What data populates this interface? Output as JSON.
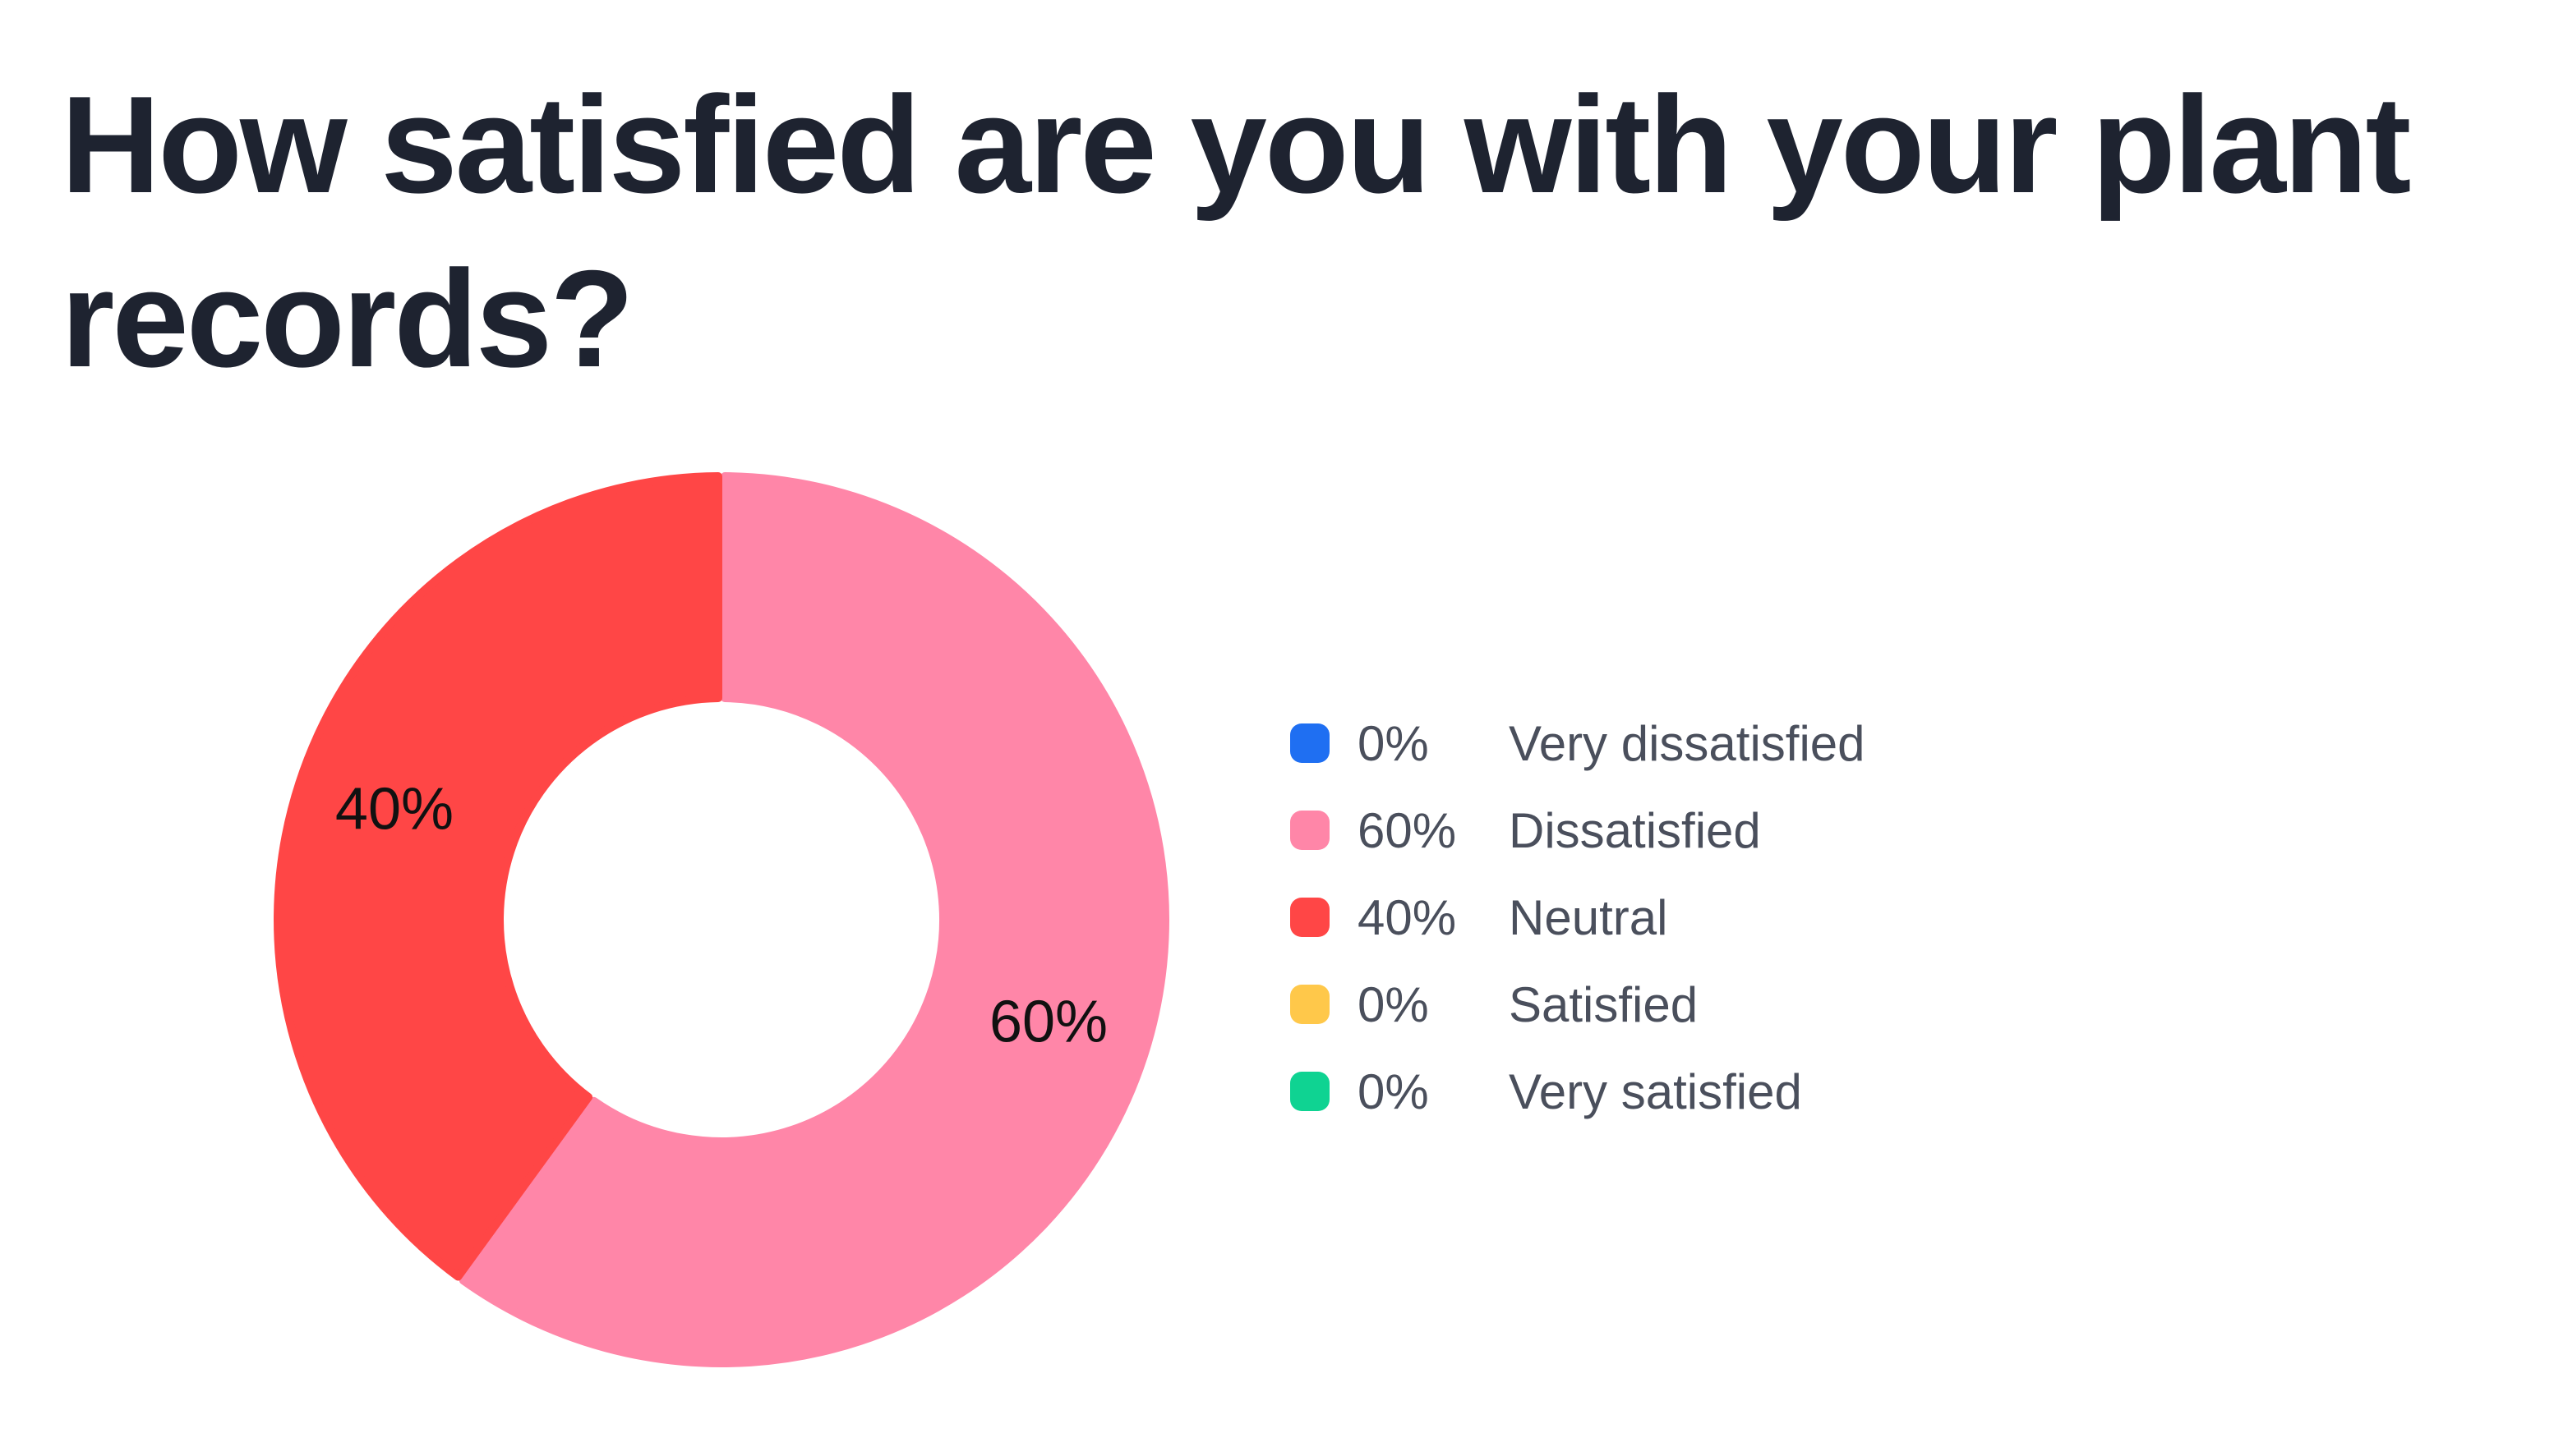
{
  "question": {
    "title": "How satisfied are you with your plant records?"
  },
  "chart_data": {
    "type": "pie",
    "title": "How satisfied are you with your plant records?",
    "categories": [
      "Very dissatisfied",
      "Dissatisfied",
      "Neutral",
      "Satisfied",
      "Very satisfied"
    ],
    "values": [
      0,
      60,
      40,
      0,
      0
    ],
    "value_labels": [
      "0%",
      "60%",
      "40%",
      "0%",
      "0%"
    ],
    "colors": [
      "#1f6ff2",
      "#ff86a8",
      "#ff4646",
      "#ffc84a",
      "#0fd392"
    ],
    "style": "donut",
    "legend_position": "right"
  }
}
